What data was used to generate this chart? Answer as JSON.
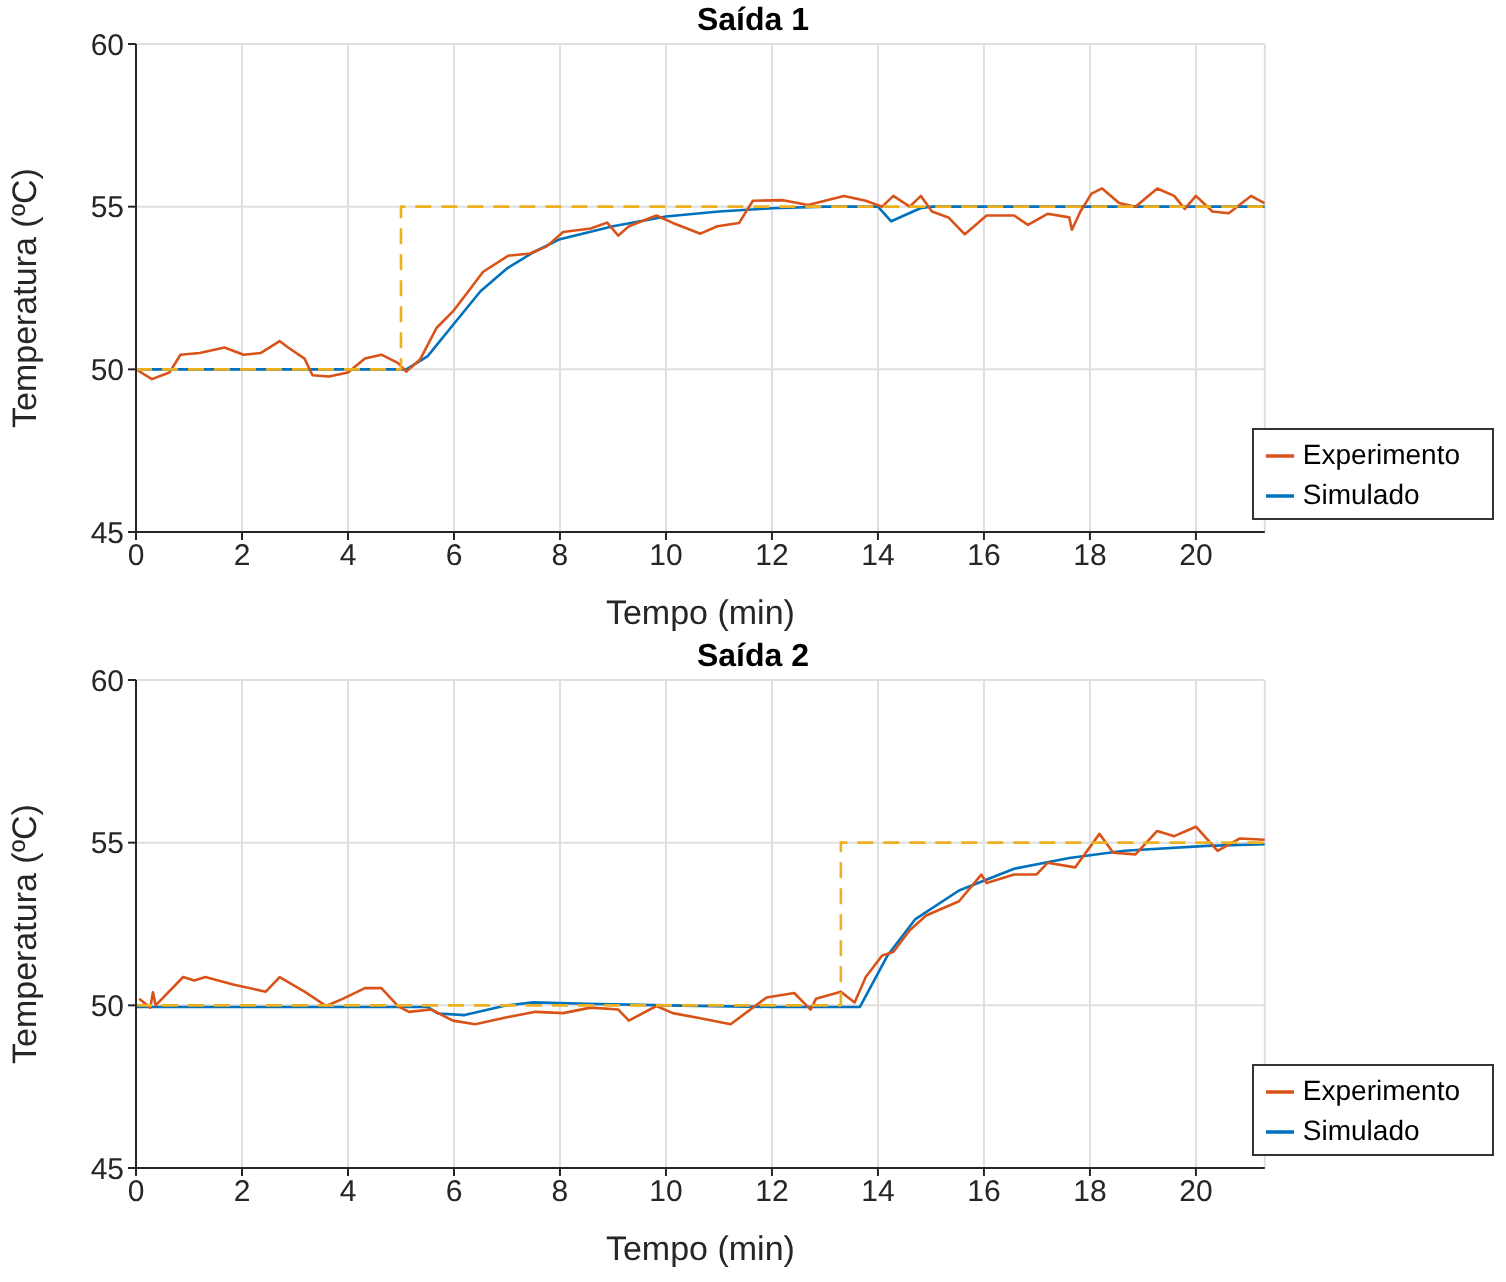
{
  "chart_data": [
    {
      "type": "line",
      "title": "Saída 1",
      "xlabel": "Tempo (min)",
      "ylabel": "Temperatura (ºC)",
      "xlim": [
        0,
        21.3
      ],
      "xticks": [
        0,
        2,
        4,
        6,
        8,
        10,
        12,
        14,
        16,
        18,
        20
      ],
      "ylim": [
        45,
        60
      ],
      "yticks": [
        45,
        50,
        55,
        60
      ],
      "grid": true,
      "legend": "bottom right",
      "series": [
        {
          "name": "Simulado",
          "color": "#0072bd",
          "x": [
            0,
            5.1,
            5.5,
            6,
            6.5,
            7,
            7.5,
            8,
            9,
            10,
            11,
            12,
            13,
            14,
            14.25,
            14.8,
            15,
            21.3
          ],
          "values": [
            50,
            50,
            50.4,
            51.4,
            52.4,
            53.1,
            53.6,
            54,
            54.4,
            54.7,
            54.85,
            54.95,
            55,
            55,
            54.55,
            54.95,
            55,
            55
          ]
        },
        {
          "name": "Experimento",
          "color": "#d95319",
          "x": [
            0,
            0.3,
            0.63,
            0.84,
            1.2,
            1.67,
            2.03,
            2.35,
            2.71,
            2.87,
            3.18,
            3.33,
            3.64,
            4,
            4.32,
            4.63,
            4.94,
            5.1,
            5.36,
            5.67,
            5.98,
            6.24,
            6.55,
            7.02,
            7.44,
            7.75,
            8.06,
            8.58,
            8.89,
            9.1,
            9.3,
            9.82,
            10.13,
            10.65,
            10.97,
            11.38,
            11.64,
            12.21,
            12.68,
            13.36,
            13.77,
            14.08,
            14.29,
            14.6,
            14.81,
            15.02,
            15.33,
            15.64,
            16.05,
            16.57,
            16.83,
            17.2,
            17.61,
            17.66,
            17.82,
            18.03,
            18.23,
            18.55,
            18.86,
            19.27,
            19.59,
            19.79,
            20,
            20.31,
            20.62,
            21.04,
            21.3
          ],
          "values": [
            50,
            49.7,
            49.9,
            50.45,
            50.5,
            50.67,
            50.45,
            50.5,
            50.87,
            50.67,
            50.33,
            49.82,
            49.78,
            49.9,
            50.33,
            50.45,
            50.2,
            49.93,
            50.3,
            51.27,
            51.78,
            52.33,
            53,
            53.49,
            53.56,
            53.78,
            54.22,
            54.33,
            54.51,
            54.11,
            54.4,
            54.73,
            54.5,
            54.17,
            54.4,
            54.5,
            55.18,
            55.2,
            55.05,
            55.33,
            55.18,
            55,
            55.33,
            55,
            55.33,
            54.85,
            54.67,
            54.15,
            54.73,
            54.73,
            54.44,
            54.78,
            54.67,
            54.29,
            54.85,
            55.4,
            55.56,
            55.11,
            55,
            55.56,
            55.33,
            54.93,
            55.33,
            54.85,
            54.8,
            55.33,
            55.1
          ]
        },
        {
          "type": "step",
          "color": "#edb120",
          "line_style": "dashed",
          "x": [
            0,
            5,
            21.3
          ],
          "values": [
            50,
            55,
            55
          ]
        }
      ]
    },
    {
      "type": "line",
      "title": "Saída 2",
      "xlabel": "Tempo (min)",
      "ylabel": "Temperatura (ºC)",
      "xlim": [
        0,
        21.3
      ],
      "xticks": [
        0,
        2,
        4,
        6,
        8,
        10,
        12,
        14,
        16,
        18,
        20
      ],
      "ylim": [
        45,
        60
      ],
      "yticks": [
        45,
        50,
        55,
        60
      ],
      "grid": true,
      "legend": "bottom right",
      "series": [
        {
          "name": "Simulado",
          "color": "#0072bd",
          "x": [
            0,
            5.5,
            5.7,
            6.2,
            7,
            7.5,
            8.5,
            10,
            12,
            13.66,
            14.18,
            14.7,
            15.53,
            16.57,
            17.61,
            18.65,
            20.2,
            21.3
          ],
          "values": [
            49.95,
            49.95,
            49.75,
            49.7,
            50,
            50.09,
            50.05,
            50,
            49.95,
            49.95,
            51.53,
            52.64,
            53.53,
            54.2,
            54.53,
            54.75,
            54.9,
            54.95
          ]
        },
        {
          "name": "Experimento",
          "color": "#d95319",
          "x": [
            0.06,
            0.27,
            0.32,
            0.37,
            0.89,
            1.1,
            1.31,
            1.83,
            2.45,
            2.71,
            3.18,
            3.59,
            3.9,
            4.32,
            4.63,
            4.94,
            5.15,
            5.57,
            5.98,
            6.4,
            7.02,
            7.54,
            8.06,
            8.58,
            9.1,
            9.3,
            9.82,
            10.13,
            10.65,
            11.22,
            11.9,
            12.42,
            12.73,
            12.83,
            13.3,
            13.56,
            13.77,
            14.08,
            14.29,
            14.6,
            14.91,
            15.53,
            15.95,
            16.05,
            16.57,
            16.99,
            17.2,
            17.72,
            18.18,
            18.44,
            18.86,
            19.27,
            19.59,
            20,
            20.41,
            20.83,
            21.3
          ],
          "values": [
            50.2,
            49.93,
            50.4,
            50,
            50.87,
            50.76,
            50.87,
            50.64,
            50.42,
            50.87,
            50.42,
            49.98,
            50.2,
            50.53,
            50.53,
            49.98,
            49.8,
            49.87,
            49.53,
            49.42,
            49.64,
            49.8,
            49.76,
            49.93,
            49.87,
            49.53,
            49.98,
            49.76,
            49.6,
            49.42,
            50.24,
            50.38,
            49.87,
            50.2,
            50.42,
            50.09,
            50.87,
            51.53,
            51.64,
            52.31,
            52.76,
            53.2,
            54.02,
            53.76,
            54.02,
            54.02,
            54.38,
            54.24,
            55.27,
            54.69,
            54.64,
            55.36,
            55.2,
            55.49,
            54.75,
            55.13,
            55.09
          ]
        },
        {
          "type": "step",
          "color": "#edb120",
          "line_style": "dashed",
          "x": [
            0,
            13.3,
            21.3
          ],
          "values": [
            50,
            55,
            55
          ]
        }
      ]
    }
  ]
}
